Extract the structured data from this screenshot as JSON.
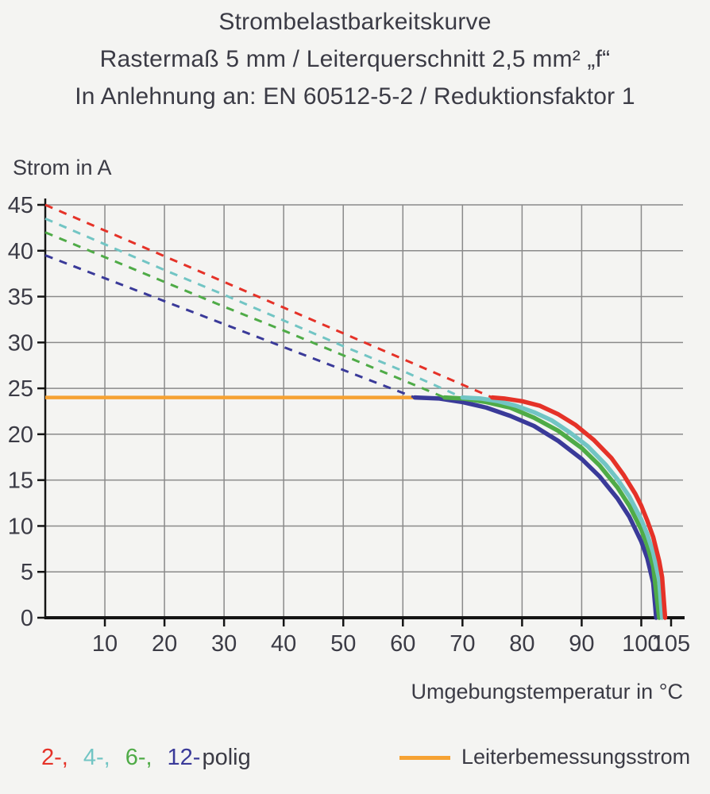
{
  "title": {
    "line1": "Strombelastbarkeitskurve",
    "line2": "Rastermaß 5 mm / Leiterquerschnitt 2,5 mm² „f“",
    "line3": "In Anlehnung an: EN 60512-5-2 / Reduktionsfaktor 1"
  },
  "colors": {
    "text": "#3b3b45",
    "grid": "#8a8a8a",
    "axis": "#141414",
    "background": "#f4f4f2"
  },
  "chart_data": {
    "type": "line",
    "title": "Strombelastbarkeitskurve",
    "ylabel": "Strom in A",
    "xlabel": "Umgebungstemperatur in °C",
    "xlim": [
      0,
      107
    ],
    "ylim": [
      0,
      45
    ],
    "x_ticks": [
      10,
      20,
      30,
      40,
      50,
      60,
      70,
      80,
      90,
      100,
      105
    ],
    "y_ticks": [
      0,
      5,
      10,
      15,
      20,
      25,
      30,
      35,
      40,
      45
    ],
    "grid": true,
    "rated_current": {
      "name": "Leiterbemessungsstrom",
      "color": "#f6a233",
      "value_A": 24,
      "points": [
        [
          0,
          24
        ],
        [
          62,
          24
        ]
      ]
    },
    "series": [
      {
        "name": "2-polig",
        "legend_label": "2-,",
        "color": "#e53228",
        "dashed": [
          [
            0,
            45
          ],
          [
            10,
            42.2
          ],
          [
            20,
            39.4
          ],
          [
            30,
            36.6
          ],
          [
            40,
            33.8
          ],
          [
            50,
            31
          ],
          [
            60,
            28.2
          ],
          [
            70,
            25.4
          ],
          [
            75,
            24
          ]
        ],
        "solid": [
          [
            75,
            24
          ],
          [
            77,
            23.9
          ],
          [
            80,
            23.6
          ],
          [
            83,
            23.1
          ],
          [
            86,
            22.2
          ],
          [
            89,
            21
          ],
          [
            92,
            19.4
          ],
          [
            95,
            17.4
          ],
          [
            97,
            15.6
          ],
          [
            99,
            13.5
          ],
          [
            100,
            12.2
          ],
          [
            101,
            10.6
          ],
          [
            102,
            8.8
          ],
          [
            103,
            6.2
          ],
          [
            103.5,
            4.4
          ],
          [
            104,
            0
          ]
        ]
      },
      {
        "name": "4-polig",
        "legend_label": "4-,",
        "color": "#72c5c4",
        "dashed": [
          [
            0,
            43.5
          ],
          [
            10,
            40.7
          ],
          [
            20,
            37.9
          ],
          [
            30,
            35.2
          ],
          [
            40,
            32.4
          ],
          [
            50,
            29.6
          ],
          [
            60,
            26.9
          ],
          [
            70,
            24
          ]
        ],
        "solid": [
          [
            70,
            24
          ],
          [
            73,
            23.9
          ],
          [
            76,
            23.6
          ],
          [
            79,
            23.1
          ],
          [
            82,
            22.4
          ],
          [
            85,
            21.5
          ],
          [
            88,
            20.2
          ],
          [
            91,
            18.7
          ],
          [
            94,
            16.7
          ],
          [
            96,
            15.1
          ],
          [
            98,
            13.2
          ],
          [
            100,
            10.7
          ],
          [
            101,
            9.1
          ],
          [
            102,
            7.1
          ],
          [
            103,
            4.1
          ],
          [
            103.5,
            0
          ]
        ]
      },
      {
        "name": "6-polig",
        "legend_label": "6-,",
        "color": "#4fab47",
        "dashed": [
          [
            0,
            42
          ],
          [
            10,
            39.3
          ],
          [
            20,
            36.6
          ],
          [
            30,
            33.9
          ],
          [
            40,
            31.3
          ],
          [
            50,
            28.6
          ],
          [
            60,
            25.9
          ],
          [
            67,
            24
          ]
        ],
        "solid": [
          [
            67,
            24
          ],
          [
            70,
            23.9
          ],
          [
            74,
            23.5
          ],
          [
            78,
            22.9
          ],
          [
            82,
            21.8
          ],
          [
            86,
            20.4
          ],
          [
            90,
            18.5
          ],
          [
            93,
            16.6
          ],
          [
            96,
            14.2
          ],
          [
            98,
            12.2
          ],
          [
            100,
            9.6
          ],
          [
            101,
            7.9
          ],
          [
            102,
            5.6
          ],
          [
            103,
            0
          ]
        ]
      },
      {
        "name": "12-polig",
        "legend_label": "12-",
        "color": "#3a3a99",
        "dashed": [
          [
            0,
            39.5
          ],
          [
            10,
            37
          ],
          [
            20,
            34.5
          ],
          [
            30,
            32
          ],
          [
            40,
            29.5
          ],
          [
            50,
            27
          ],
          [
            60,
            24.5
          ],
          [
            62,
            24
          ]
        ],
        "solid": [
          [
            62,
            24
          ],
          [
            66,
            23.9
          ],
          [
            70,
            23.5
          ],
          [
            74,
            22.9
          ],
          [
            78,
            22
          ],
          [
            82,
            20.9
          ],
          [
            86,
            19.3
          ],
          [
            90,
            17.3
          ],
          [
            93,
            15.4
          ],
          [
            96,
            13
          ],
          [
            98,
            11
          ],
          [
            100,
            8.3
          ],
          [
            101,
            6.5
          ],
          [
            102,
            3.8
          ],
          [
            102.5,
            0
          ]
        ]
      }
    ]
  },
  "legend": {
    "polig_suffix": "polig",
    "rated_label": "Leiterbemessungsstrom"
  }
}
